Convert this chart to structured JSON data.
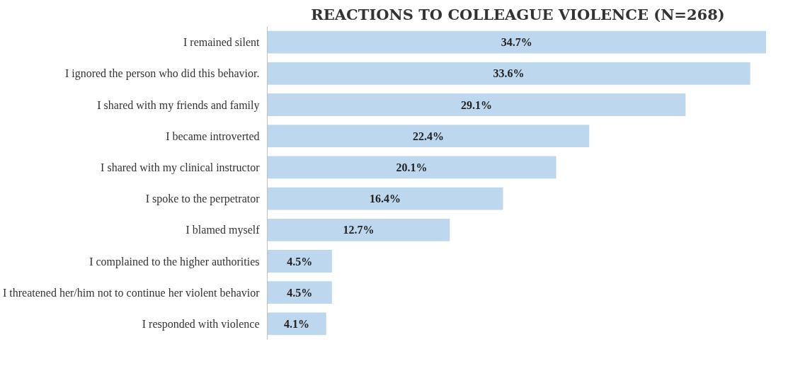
{
  "chart_data": {
    "type": "bar",
    "orientation": "horizontal",
    "title": "REACTIONS TO COLLEAGUE VIOLENCE (N=268)",
    "categories": [
      "I remained silent",
      "I ignored the person who did this behavior.",
      "I shared with my friends and family",
      "I became introverted",
      "I shared with my clinical instructor",
      "I spoke to the perpetrator",
      "I blamed myself",
      "I complained to the higher authorities",
      "I threatened her/him not to continue her violent behavior",
      "I responded with violence"
    ],
    "values": [
      34.7,
      33.6,
      29.1,
      22.4,
      20.1,
      16.4,
      12.7,
      4.5,
      4.5,
      4.1
    ],
    "value_labels": [
      "34.7%",
      "33.6%",
      "29.1%",
      "22.4%",
      "20.1%",
      "16.4%",
      "12.7%",
      "4.5%",
      "4.5%",
      "4.1%"
    ],
    "color": "#bdd7ee"
  }
}
